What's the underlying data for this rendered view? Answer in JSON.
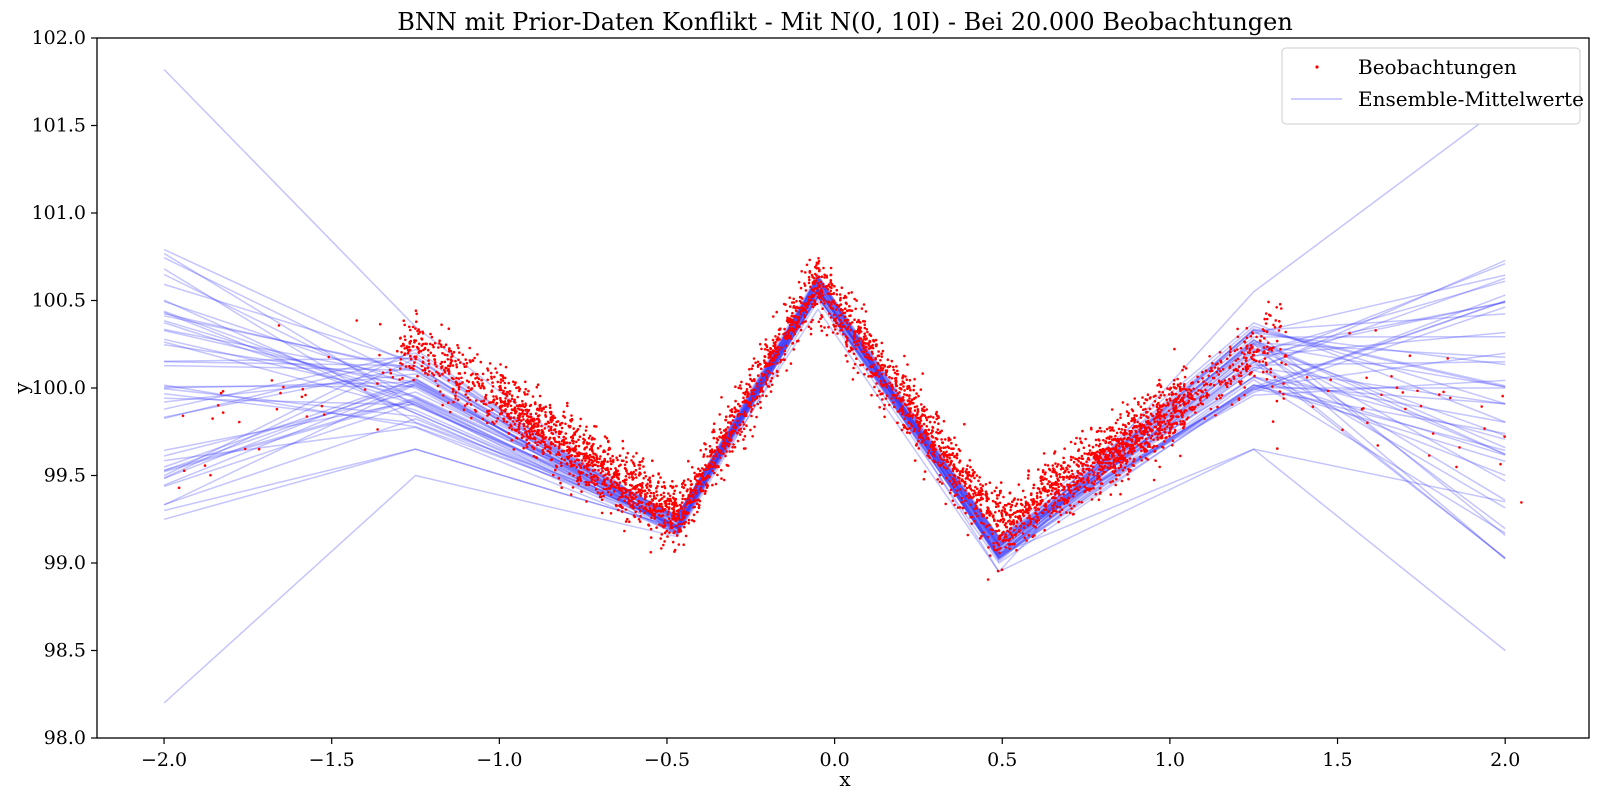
{
  "chart_data": {
    "type": "scatter",
    "title": "BNN mit Prior-Daten Konflikt - Mit N(0, 10I) - Bei 20.000 Beobachtungen",
    "xlabel": "x",
    "ylabel": "y",
    "xlim": [
      -2.2,
      2.25
    ],
    "ylim": [
      98.0,
      102.0
    ],
    "x_ticks": [
      -2.0,
      -1.5,
      -1.0,
      -0.5,
      0.0,
      0.5,
      1.0,
      1.5,
      2.0
    ],
    "x_tick_labels": [
      "−2.0",
      "−1.5",
      "−1.0",
      "−0.5",
      "0.0",
      "0.5",
      "1.0",
      "1.5",
      "2.0"
    ],
    "y_ticks": [
      98.0,
      98.5,
      99.0,
      99.5,
      100.0,
      100.5,
      101.0,
      101.5,
      102.0
    ],
    "y_tick_labels": [
      "98.0",
      "98.5",
      "99.0",
      "99.5",
      "100.0",
      "100.5",
      "101.0",
      "101.5",
      "102.0"
    ],
    "grid": false,
    "legend_position": "top-right",
    "colors": {
      "observations": "#ff0000",
      "ensemble": "#3a3aff"
    },
    "observations": {
      "name": "Beobachtungen",
      "count": 20000,
      "dense_range": [
        -1.3,
        1.35
      ],
      "sparse_range": [
        -2.0,
        2.05
      ],
      "noise_sd": 0.09,
      "mean_curve": {
        "x": [
          -1.25,
          -0.47,
          -0.05,
          0.49,
          1.3
        ],
        "y": [
          100.25,
          99.25,
          100.6,
          99.2,
          100.25
        ]
      }
    },
    "ensemble": {
      "name": "Ensemble-Mittelwerte",
      "count": 50,
      "knots_x": [
        -2.0,
        -1.25,
        -0.47,
        -0.05,
        0.49,
        1.25,
        2.0
      ],
      "center_y": [
        100.25,
        100.25,
        99.2,
        100.6,
        99.05,
        100.2,
        100.25
      ],
      "edge_y_range": [
        98.2,
        101.8
      ],
      "extreme_members": [
        {
          "name": "lowest-left",
          "y": [
            98.2,
            99.5,
            99.15,
            100.5,
            99.0,
            100.0,
            100.0
          ]
        },
        {
          "name": "highest-left",
          "y": [
            101.82,
            100.35,
            99.2,
            100.6,
            99.05,
            99.65,
            98.5
          ]
        },
        {
          "name": "highest-right",
          "y": [
            99.3,
            99.65,
            99.2,
            100.6,
            98.95,
            100.55,
            101.62
          ]
        },
        {
          "name": "low-kink",
          "y": [
            99.25,
            99.65,
            99.2,
            100.45,
            98.95,
            99.65,
            99.35
          ]
        }
      ]
    }
  }
}
